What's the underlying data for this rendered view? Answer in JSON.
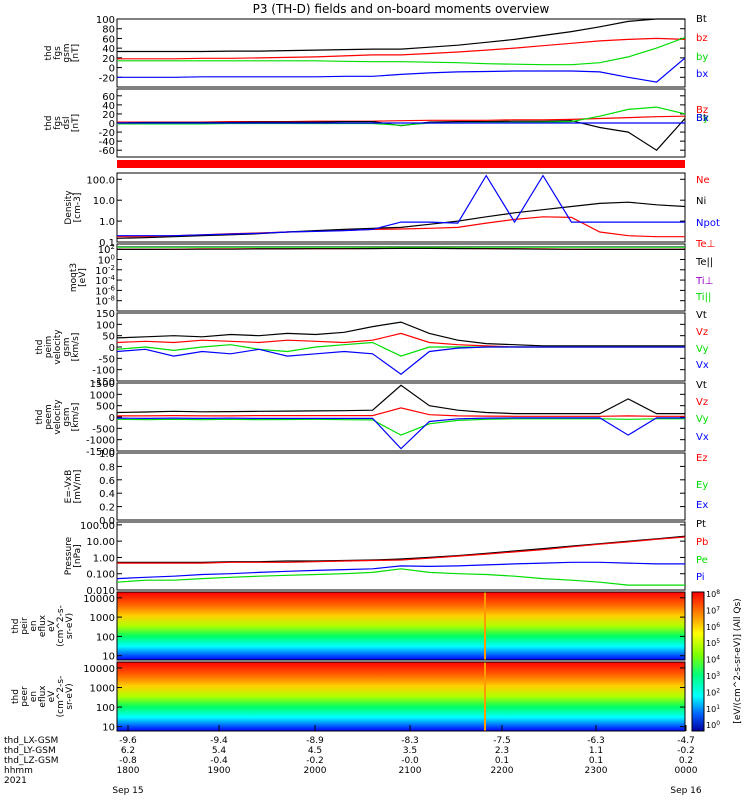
{
  "title": "P3 (TH-D) fields and on-board moments overview",
  "colors": {
    "black": "#000000",
    "red": "#ff0000",
    "green": "#00dd00",
    "blue": "#0000ff"
  },
  "colorbar": {
    "label": "[eV/(cm^2-s-sr-eV)] (All Qs)",
    "ticks": [
      "10^8",
      "10^7",
      "10^6",
      "10^5",
      "10^4",
      "10^3",
      "10^2",
      "10^1",
      "10^0"
    ]
  },
  "chart_data": [
    {
      "type": "line",
      "panel": "fgs_gsm",
      "ylabel_lines": [
        "thd",
        "fgs",
        "gsm",
        "[nT]"
      ],
      "ylim": [
        -40,
        100
      ],
      "yticks": [
        "-20",
        "0",
        "20",
        "40",
        "60",
        "80",
        "100"
      ],
      "series": [
        {
          "name": "Bt",
          "color": "black",
          "values": [
            33,
            33,
            33,
            33,
            34,
            34,
            35,
            36,
            37,
            38,
            38,
            42,
            46,
            52,
            58,
            66,
            74,
            84,
            95,
            100,
            100
          ]
        },
        {
          "name": "bz",
          "color": "red",
          "values": [
            18,
            18,
            18,
            19,
            19,
            20,
            21,
            22,
            24,
            26,
            26,
            29,
            32,
            36,
            40,
            45,
            50,
            55,
            58,
            60,
            58
          ]
        },
        {
          "name": "by",
          "color": "green",
          "values": [
            14,
            14,
            14,
            14,
            14,
            14,
            14,
            14,
            13,
            12,
            12,
            11,
            10,
            8,
            7,
            6,
            6,
            10,
            22,
            40,
            62
          ]
        },
        {
          "name": "bx",
          "color": "blue",
          "values": [
            -20,
            -20,
            -20,
            -19,
            -19,
            -19,
            -19,
            -19,
            -18,
            -18,
            -14,
            -11,
            -9,
            -8,
            -7,
            -7,
            -7,
            -9,
            -20,
            -30,
            20
          ]
        }
      ]
    },
    {
      "type": "line",
      "panel": "fgs_dsl",
      "ylabel_lines": [
        "thd",
        "fgs",
        "dsl",
        "[nT]"
      ],
      "ylim": [
        -75,
        75
      ],
      "yticks": [
        "-60",
        "-40",
        "-20",
        "0",
        "20",
        "40",
        "60"
      ],
      "series": [
        {
          "name": "Bz",
          "color": "red",
          "values": [
            2,
            2,
            2,
            2,
            3,
            3,
            3,
            4,
            4,
            4,
            5,
            6,
            6,
            6,
            7,
            7,
            8,
            10,
            12,
            14,
            15
          ]
        },
        {
          "name": "Bt",
          "color": "black",
          "values": [
            0,
            1,
            1,
            1,
            1,
            2,
            2,
            2,
            3,
            3,
            -6,
            2,
            3,
            3,
            4,
            4,
            5,
            -10,
            -20,
            -60,
            10
          ]
        },
        {
          "name": "By",
          "color": "green",
          "values": [
            -2,
            -2,
            -2,
            -2,
            -1,
            -1,
            -1,
            -1,
            -1,
            -1,
            -5,
            0,
            0,
            1,
            1,
            2,
            3,
            15,
            30,
            35,
            20
          ]
        },
        {
          "name": "Bx",
          "color": "blue",
          "values": [
            0,
            0,
            0,
            0,
            0,
            0,
            0,
            0,
            0,
            0,
            0,
            0,
            0,
            0,
            0,
            0,
            0,
            0,
            0,
            0,
            0
          ]
        }
      ]
    },
    {
      "type": "line",
      "panel": "density",
      "yscale": "log",
      "ylabel_lines": [
        "Density",
        "[cm-3]"
      ],
      "ylim": [
        0.1,
        200
      ],
      "yticks": [
        "0.1",
        "1.0",
        "10.0",
        "100.0"
      ],
      "series": [
        {
          "name": "Ne",
          "color": "red",
          "values": [
            0.18,
            0.18,
            0.2,
            0.22,
            0.25,
            0.27,
            0.3,
            0.33,
            0.36,
            0.4,
            0.42,
            0.45,
            0.5,
            0.8,
            1.2,
            1.6,
            1.5,
            0.3,
            0.2,
            0.18,
            0.18
          ]
        },
        {
          "name": "Ni",
          "color": "black",
          "values": [
            0.15,
            0.16,
            0.18,
            0.2,
            0.22,
            0.25,
            0.3,
            0.35,
            0.4,
            0.45,
            0.5,
            0.7,
            1.0,
            1.6,
            2.5,
            3.5,
            5.0,
            7.0,
            8.0,
            6.0,
            5.0
          ]
        },
        {
          "name": "Npot",
          "color": "blue",
          "values": [
            0.2,
            0.2,
            0.2,
            0.22,
            0.24,
            0.26,
            0.3,
            0.32,
            0.35,
            0.4,
            0.9,
            0.9,
            0.8,
            150,
            0.9,
            150,
            0.9,
            0.9,
            0.9,
            0.9,
            0.9
          ]
        }
      ]
    },
    {
      "type": "line",
      "panel": "temperature",
      "yscale": "log",
      "ylabel_lines": [
        "moqt3",
        "[eV]"
      ],
      "ylim": [
        1e-10,
        1000
      ],
      "yticks": [
        "10^-8",
        "10^-6",
        "10^-4",
        "10^-2",
        "10^0",
        "10^2"
      ],
      "series": [
        {
          "name": "Te⊥",
          "color": "red",
          "values": [
            100,
            100,
            100,
            110,
            110,
            120,
            120,
            130,
            130,
            140,
            150,
            150,
            140,
            130,
            120,
            110,
            100,
            100,
            100,
            100,
            100
          ]
        },
        {
          "name": "Te||",
          "color": "black",
          "values": [
            90,
            90,
            95,
            100,
            100,
            110,
            110,
            120,
            120,
            130,
            140,
            140,
            130,
            120,
            110,
            100,
            95,
            90,
            90,
            90,
            90
          ]
        },
        {
          "name": "Ti⊥",
          "color": "purple",
          "values": [
            300,
            300,
            300,
            300,
            300,
            300,
            300,
            300,
            300,
            300,
            300,
            300,
            300,
            300,
            300,
            300,
            300,
            300,
            300,
            300,
            300
          ]
        },
        {
          "name": "Ti||",
          "color": "green",
          "values": [
            250,
            250,
            250,
            250,
            250,
            250,
            250,
            250,
            250,
            250,
            250,
            250,
            250,
            250,
            250,
            250,
            250,
            250,
            250,
            250,
            250
          ]
        }
      ]
    },
    {
      "type": "line",
      "panel": "peim_velocity",
      "ylabel_lines": [
        "thd",
        "peim",
        "velocity",
        "gsm",
        "[km/s]"
      ],
      "ylim": [
        -150,
        150
      ],
      "yticks": [
        "-150",
        "-100",
        "-50",
        "0",
        "50",
        "100",
        "150"
      ],
      "series": [
        {
          "name": "Vt",
          "color": "black",
          "values": [
            40,
            45,
            50,
            45,
            55,
            50,
            60,
            55,
            65,
            90,
            110,
            60,
            30,
            15,
            10,
            5,
            5,
            5,
            5,
            5,
            5
          ]
        },
        {
          "name": "Vz",
          "color": "red",
          "values": [
            20,
            25,
            20,
            30,
            25,
            20,
            30,
            25,
            20,
            30,
            60,
            20,
            10,
            5,
            0,
            0,
            0,
            0,
            0,
            0,
            0
          ]
        },
        {
          "name": "Vy",
          "color": "green",
          "values": [
            -10,
            0,
            -15,
            0,
            10,
            -10,
            -20,
            0,
            10,
            20,
            -40,
            0,
            0,
            0,
            0,
            0,
            0,
            0,
            0,
            0,
            0
          ]
        },
        {
          "name": "Vx",
          "color": "blue",
          "values": [
            -20,
            -10,
            -40,
            -20,
            -30,
            -10,
            -40,
            -30,
            -20,
            -30,
            -120,
            -20,
            -5,
            0,
            0,
            0,
            0,
            0,
            0,
            0,
            0
          ]
        }
      ]
    },
    {
      "type": "line",
      "panel": "peem_velocity",
      "ylabel_lines": [
        "thd",
        "peem",
        "velocity",
        "gsm",
        "[km/s]"
      ],
      "ylim": [
        -1500,
        1500
      ],
      "yticks": [
        "-1500",
        "-1000",
        "-500",
        "0",
        "500",
        "1000",
        "1500"
      ],
      "series": [
        {
          "name": "Vt",
          "color": "black",
          "values": [
            200,
            220,
            250,
            230,
            240,
            250,
            260,
            270,
            280,
            300,
            1400,
            500,
            300,
            200,
            150,
            150,
            150,
            150,
            800,
            150,
            150
          ]
        },
        {
          "name": "Vz",
          "color": "red",
          "values": [
            50,
            50,
            60,
            50,
            50,
            60,
            60,
            60,
            60,
            60,
            400,
            100,
            50,
            40,
            30,
            30,
            30,
            30,
            50,
            30,
            30
          ]
        },
        {
          "name": "Vy",
          "color": "green",
          "values": [
            -100,
            -120,
            -100,
            -120,
            -100,
            -120,
            -110,
            -100,
            -120,
            -130,
            -800,
            -300,
            -150,
            -100,
            -80,
            -80,
            -80,
            -80,
            -100,
            -80,
            -80
          ]
        },
        {
          "name": "Vx",
          "color": "blue",
          "values": [
            -50,
            -60,
            -50,
            -60,
            -50,
            -60,
            -60,
            -60,
            -60,
            -60,
            -1400,
            -200,
            -80,
            -50,
            -40,
            -40,
            -40,
            -40,
            -800,
            -40,
            -40
          ]
        }
      ]
    },
    {
      "type": "line",
      "panel": "efield",
      "ylabel_lines": [
        "E=-VxB",
        "[mV/m]"
      ],
      "ylim": [
        0,
        1
      ],
      "yticks": [
        "0.0",
        "0.2",
        "0.4",
        "0.6",
        "0.8",
        "1.0"
      ],
      "series": [
        {
          "name": "Ez",
          "color": "red",
          "values": []
        },
        {
          "name": "Ey",
          "color": "green",
          "values": []
        },
        {
          "name": "Ex",
          "color": "blue",
          "values": []
        }
      ]
    },
    {
      "type": "line",
      "panel": "pressure",
      "yscale": "log",
      "ylabel_lines": [
        "Pressure",
        "[nPa]"
      ],
      "ylim": [
        0.01,
        150
      ],
      "yticks": [
        "0.010",
        "0.100",
        "1.00",
        "10.00",
        "100.00"
      ],
      "series": [
        {
          "name": "Pt",
          "color": "black",
          "values": [
            0.5,
            0.5,
            0.5,
            0.5,
            0.55,
            0.55,
            0.6,
            0.6,
            0.65,
            0.7,
            0.8,
            1.0,
            1.3,
            1.8,
            2.5,
            3.5,
            5,
            7,
            10,
            14,
            20
          ]
        },
        {
          "name": "Pb",
          "color": "red",
          "values": [
            0.45,
            0.45,
            0.45,
            0.45,
            0.5,
            0.5,
            0.5,
            0.55,
            0.6,
            0.65,
            0.7,
            0.9,
            1.2,
            1.6,
            2.2,
            3,
            4.5,
            6.5,
            9,
            13,
            18
          ]
        },
        {
          "name": "Pe",
          "color": "green",
          "values": [
            0.03,
            0.04,
            0.04,
            0.05,
            0.06,
            0.07,
            0.08,
            0.09,
            0.1,
            0.12,
            0.2,
            0.12,
            0.1,
            0.09,
            0.07,
            0.05,
            0.04,
            0.03,
            0.02,
            0.02,
            0.02
          ]
        },
        {
          "name": "Pi",
          "color": "blue",
          "values": [
            0.05,
            0.06,
            0.07,
            0.09,
            0.1,
            0.12,
            0.14,
            0.16,
            0.18,
            0.2,
            0.3,
            0.28,
            0.3,
            0.35,
            0.4,
            0.45,
            0.5,
            0.5,
            0.45,
            0.4,
            0.4
          ]
        }
      ]
    },
    {
      "type": "heatmap",
      "panel": "peir_eflux",
      "ylabel_lines": [
        "thd",
        "peir",
        "en",
        "eflux",
        "eV",
        "(cm^2-s-",
        "sr-eV)"
      ],
      "yscale": "log",
      "ylim": [
        6,
        20000
      ],
      "yticks": [
        "10",
        "100",
        "1000",
        "10000"
      ]
    },
    {
      "type": "heatmap",
      "panel": "peer_eflux",
      "ylabel_lines": [
        "thd",
        "peer",
        "en",
        "eflux",
        "eV",
        "(cm^2-s-",
        "sr-eV)"
      ],
      "yscale": "log",
      "ylim": [
        6,
        20000
      ],
      "yticks": [
        "10",
        "100",
        "1000",
        "10000"
      ]
    }
  ],
  "xaxis": {
    "row_labels": [
      "thd_LX-GSM",
      "thd_LY-GSM",
      "thd_LZ-GSM",
      "hhmm",
      "2021"
    ],
    "columns": [
      {
        "x": "-9.6",
        "y": "6.2",
        "z": "-0.8",
        "t": "1800",
        "d": "Sep 15"
      },
      {
        "x": "-9.4",
        "y": "5.4",
        "z": "-0.4",
        "t": "1900",
        "d": ""
      },
      {
        "x": "-8.9",
        "y": "4.5",
        "z": "-0.2",
        "t": "2000",
        "d": ""
      },
      {
        "x": "-8.3",
        "y": "3.5",
        "z": "-0.0",
        "t": "2100",
        "d": ""
      },
      {
        "x": "-7.5",
        "y": "2.3",
        "z": "0.1",
        "t": "2200",
        "d": ""
      },
      {
        "x": "-6.3",
        "y": "1.1",
        "z": "0.1",
        "t": "2300",
        "d": ""
      },
      {
        "x": "-4.7",
        "y": "-0.2",
        "z": "0.2",
        "t": "0000",
        "d": "Sep 16"
      }
    ]
  }
}
